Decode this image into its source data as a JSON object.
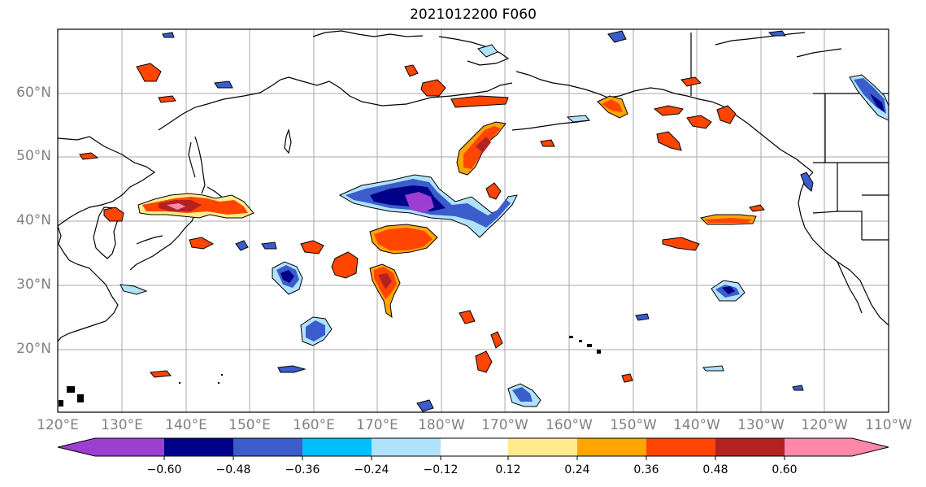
{
  "title": "2021012200 F060",
  "lat_labels": [
    "60°N",
    "50°N",
    "40°N",
    "30°N",
    "20°N"
  ],
  "lon_labels": [
    "120°E",
    "130°E",
    "140°E",
    "150°E",
    "160°E",
    "170°E",
    "180°W",
    "170°W",
    "160°W",
    "150°W",
    "140°W",
    "130°W",
    "120°W",
    "110°W"
  ],
  "colorbar": {
    "colors": [
      "#9b3ed1",
      "#000089",
      "#3b5dcc",
      "#00bfff",
      "#b0e2fc",
      "#ffffff",
      "#ffeb8b",
      "#ffa500",
      "#ff4500",
      "#b22222",
      "#ff88aa"
    ],
    "tick_labels": [
      "−0.60",
      "−0.48",
      "−0.36",
      "−0.24",
      "−0.12",
      "0.12",
      "0.24",
      "0.36",
      "0.48",
      "0.60"
    ]
  }
}
